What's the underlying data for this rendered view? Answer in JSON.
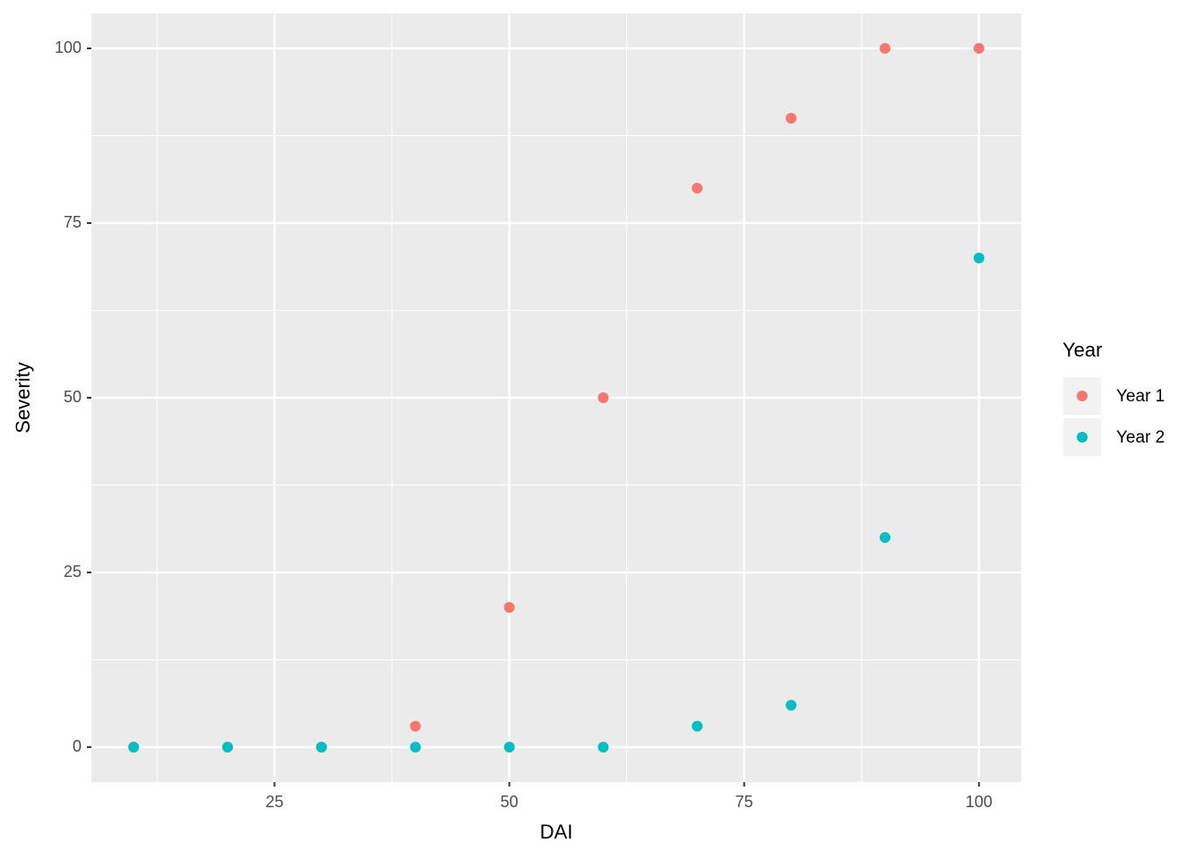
{
  "chart_data": {
    "type": "scatter",
    "x_label": "DAI",
    "y_label": "Severity",
    "x": [
      10,
      20,
      30,
      40,
      50,
      60,
      70,
      80,
      90,
      100
    ],
    "series": [
      {
        "name": "Year 1",
        "color": "#F8766D",
        "values": [
          0,
          0,
          0,
          3,
          20,
          50,
          80,
          90,
          100,
          100
        ]
      },
      {
        "name": "Year 2",
        "color": "#00BFC4",
        "values": [
          0,
          0,
          0,
          0,
          0,
          0,
          3,
          6,
          30,
          70
        ]
      }
    ],
    "xlim": [
      5.5,
      104.5
    ],
    "ylim": [
      -5,
      105
    ],
    "xticks": [
      25,
      50,
      75,
      100
    ],
    "yticks": [
      0,
      25,
      50,
      75,
      100
    ],
    "grid": true,
    "legend_title": "Year",
    "legend_position": "right"
  }
}
